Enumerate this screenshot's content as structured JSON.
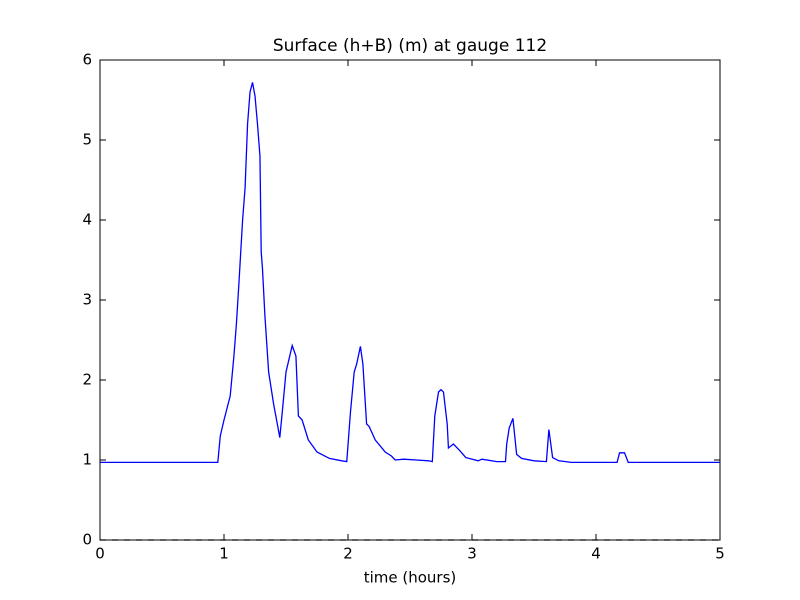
{
  "chart_data": {
    "type": "line",
    "title": "Surface (h+B) (m) at gauge 112",
    "x_label": "time (hours)",
    "xlim": [
      0,
      5
    ],
    "xticks": [
      0,
      1,
      2,
      3,
      4,
      5
    ],
    "ylim": [
      0,
      6
    ],
    "yticks": [
      0,
      1,
      2,
      3,
      4,
      5,
      6
    ],
    "series": [
      {
        "color": "#0000ff",
        "style": "solid",
        "x": [
          0,
          0.95,
          0.97,
          1.0,
          1.05,
          1.08,
          1.1,
          1.12,
          1.15,
          1.17,
          1.19,
          1.21,
          1.23,
          1.25,
          1.27,
          1.29,
          1.3,
          1.31,
          1.33,
          1.36,
          1.4,
          1.43,
          1.45,
          1.47,
          1.5,
          1.55,
          1.58,
          1.6,
          1.63,
          1.68,
          1.75,
          1.85,
          1.95,
          1.99,
          2.02,
          2.05,
          2.07,
          2.1,
          2.12,
          2.15,
          2.17,
          2.22,
          2.3,
          2.35,
          2.38,
          2.45,
          2.55,
          2.65,
          2.68,
          2.7,
          2.73,
          2.75,
          2.77,
          2.8,
          2.81,
          2.85,
          2.9,
          2.95,
          3.05,
          3.08,
          3.2,
          3.27,
          3.28,
          3.3,
          3.33,
          3.36,
          3.4,
          3.5,
          3.6,
          3.62,
          3.65,
          3.7,
          3.8,
          4.17,
          4.19,
          4.23,
          4.26,
          5.0
        ],
        "values": [
          0.97,
          0.97,
          1.3,
          1.5,
          1.8,
          2.3,
          2.7,
          3.2,
          4.0,
          4.4,
          5.2,
          5.6,
          5.72,
          5.55,
          5.2,
          4.8,
          3.6,
          3.4,
          2.8,
          2.1,
          1.7,
          1.45,
          1.28,
          1.6,
          2.1,
          2.43,
          2.3,
          1.55,
          1.5,
          1.25,
          1.1,
          1.02,
          0.99,
          0.98,
          1.6,
          2.1,
          2.2,
          2.42,
          2.2,
          1.45,
          1.42,
          1.25,
          1.1,
          1.05,
          1.0,
          1.01,
          1.0,
          0.99,
          0.98,
          1.55,
          1.85,
          1.88,
          1.85,
          1.45,
          1.15,
          1.2,
          1.12,
          1.03,
          0.99,
          1.01,
          0.98,
          0.98,
          1.2,
          1.4,
          1.52,
          1.07,
          1.02,
          0.99,
          0.98,
          1.38,
          1.03,
          0.99,
          0.97,
          0.97,
          1.09,
          1.09,
          0.97,
          0.97
        ]
      },
      {
        "color": "#000000",
        "style": "dashed",
        "x": [
          0,
          5
        ],
        "values": [
          0,
          0
        ]
      }
    ]
  }
}
